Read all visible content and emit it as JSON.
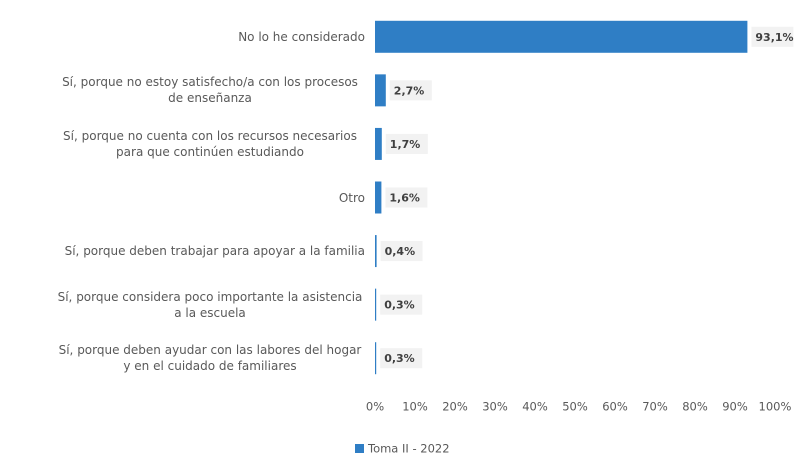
{
  "chart_data": {
    "type": "bar",
    "orientation": "horizontal",
    "categories": [
      "No lo he considerado",
      "Sí, porque no estoy satisfecho/a con los procesos de enseñanza",
      "Sí, porque no cuenta con los recursos necesarios para que continúen estudiando",
      "Otro",
      "Sí, porque deben trabajar para apoyar a la familia",
      "Sí, porque considera poco importante la asistencia a la escuela",
      "Sí, porque deben ayudar con las labores del hogar y en el cuidado de familiares"
    ],
    "series": [
      {
        "name": "Toma II - 2022",
        "color": "#2f7ec5",
        "values": [
          93.1,
          2.7,
          1.7,
          1.6,
          0.4,
          0.3,
          0.3
        ],
        "value_labels": [
          "93,1%",
          "2,7%",
          "1,7%",
          "1,6%",
          "0,4%",
          "0,3%",
          "0,3%"
        ]
      }
    ],
    "xlim": [
      0,
      100
    ],
    "xticks": [
      {
        "value": 0,
        "label": "0%"
      },
      {
        "value": 10,
        "label": "10%"
      },
      {
        "value": 20,
        "label": "20%"
      },
      {
        "value": 30,
        "label": "30%"
      },
      {
        "value": 40,
        "label": "40%"
      },
      {
        "value": 50,
        "label": "50%"
      },
      {
        "value": 60,
        "label": "60%"
      },
      {
        "value": 70,
        "label": "70%"
      },
      {
        "value": 80,
        "label": "80%"
      },
      {
        "value": 90,
        "label": "90%"
      },
      {
        "value": 100,
        "label": "100%"
      }
    ],
    "legend": "bottom"
  }
}
